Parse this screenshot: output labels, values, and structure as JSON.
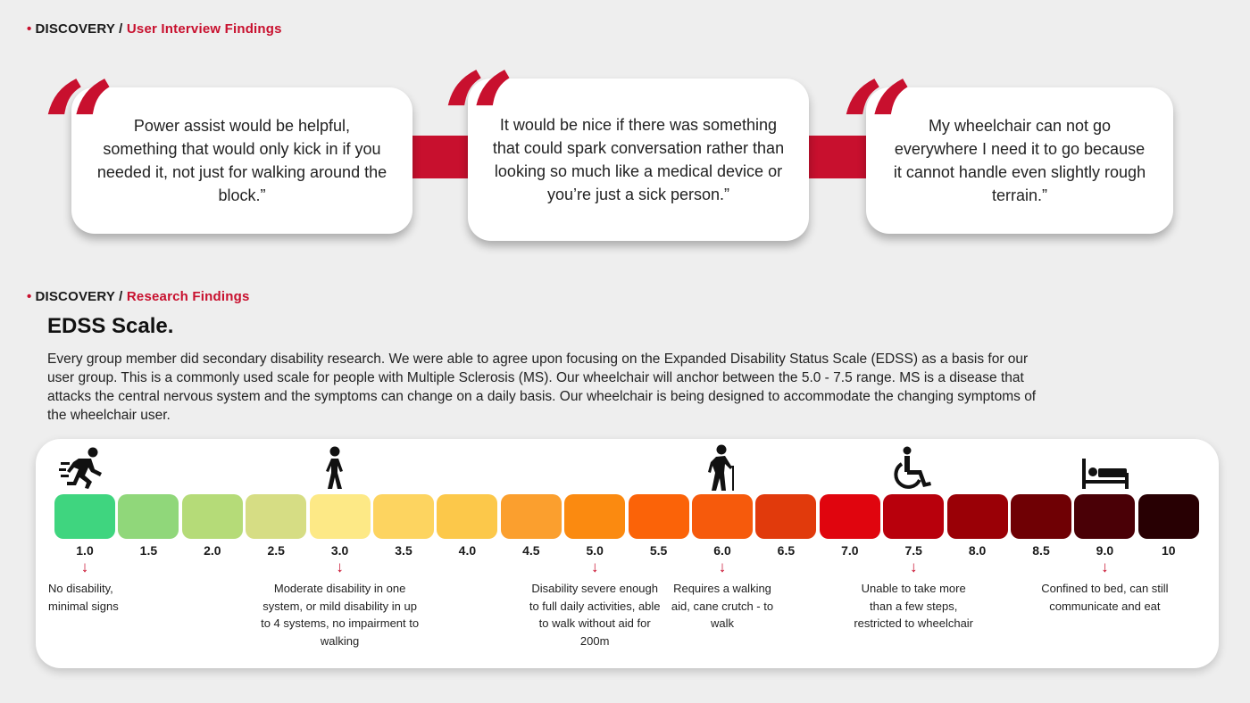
{
  "header1": {
    "bullet": "•",
    "label": "DISCOVERY /",
    "sub": "User Interview Findings"
  },
  "quotes": [
    {
      "mark": "“",
      "text": "Power assist would be helpful, something that would only kick in if you needed it, not just for walking around the block.”"
    },
    {
      "mark": "“",
      "text": "It would be nice if there was something that could spark conversation rather than looking so much like a medical device or you’re just a sick person.”"
    },
    {
      "mark": "“",
      "text": "My wheelchair can not go everywhere I need it to go because it cannot handle even slightly rough terrain.”"
    }
  ],
  "header2": {
    "bullet": "•",
    "label": "DISCOVERY /",
    "sub": "Research Findings"
  },
  "edss": {
    "title": "EDSS Scale.",
    "description": "Every group member did secondary disability research. We were able to agree upon focusing on the Expanded Disability Status Scale (EDSS) as a basis for our user group. This is a commonly used scale for people with Multiple Sclerosis (MS). Our wheelchair will anchor between the 5.0 - 7.5 range. MS is a disease that attacks the central nervous system and the symptoms can change on a daily basis. Our wheelchair is being designed to accommodate the changing symptoms of the wheelchair user."
  },
  "scale": {
    "labels": [
      "1.0",
      "1.5",
      "2.0",
      "2.5",
      "3.0",
      "3.5",
      "4.0",
      "4.5",
      "5.0",
      "5.5",
      "6.0",
      "6.5",
      "7.0",
      "7.5",
      "8.0",
      "8.5",
      "9.0",
      "10"
    ],
    "colors": [
      "#3fd57f",
      "#90d77a",
      "#b5db78",
      "#d6dd84",
      "#fde986",
      "#fdd460",
      "#fcc84a",
      "#fb9f2e",
      "#fb8a10",
      "#fb6308",
      "#f65a0c",
      "#e13a0c",
      "#e0050e",
      "#b8000c",
      "#9a0006",
      "#6f0004",
      "#4a0006",
      "#280003"
    ],
    "arrow": "↓",
    "notes": [
      {
        "index": 0,
        "text": "No disability, minimal signs"
      },
      {
        "index": 4,
        "text": "Moderate disability in one system, or mild disability in up to 4 systems, no impairment to walking"
      },
      {
        "index": 8,
        "text": "Disability severe enough to full daily activities, able  to walk without aid for 200m"
      },
      {
        "index": 10,
        "text": "Requires a walking aid, cane crutch - to walk"
      },
      {
        "index": 13,
        "text": "Unable to take more than a few steps, restricted to wheelchair"
      },
      {
        "index": 16,
        "text": "Confined to bed, can still communicate and eat"
      }
    ],
    "icons": [
      "running-person-icon",
      "walking-person-icon",
      "cane-person-icon",
      "wheelchair-icon",
      "bed-icon"
    ]
  }
}
